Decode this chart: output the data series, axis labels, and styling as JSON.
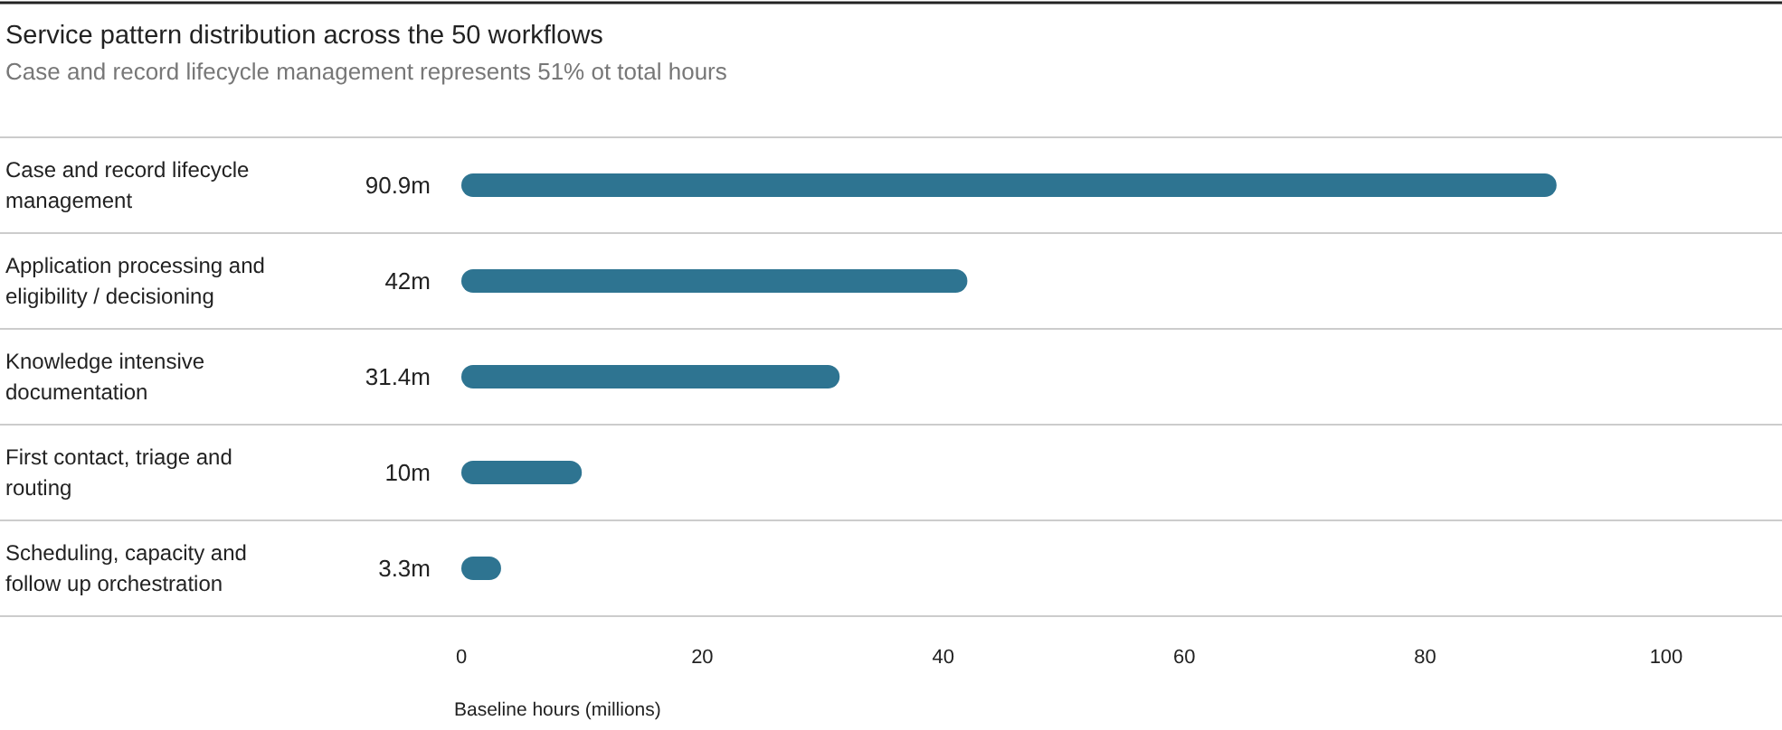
{
  "chart_data": {
    "type": "bar",
    "orientation": "horizontal",
    "title": "Service pattern distribution across the 50 workflows",
    "subtitle": "Case and record lifecycle management represents 51% ot total hours",
    "xlabel": "Baseline hours (millions)",
    "categories": [
      "Case and record lifecycle management",
      "Application processing and eligibility / decisioning",
      "Knowledge intensive documentation",
      "First contact, triage and routing",
      "Scheduling, capacity and follow up orchestration"
    ],
    "values": [
      90.9,
      42,
      31.4,
      10,
      3.3
    ],
    "value_labels": [
      "90.9m",
      "42m",
      "31.4m",
      "10m",
      "3.3m"
    ],
    "color": "#2e7491",
    "xlim": [
      0,
      100
    ],
    "xticks": [
      0,
      20,
      40,
      60,
      80,
      100
    ],
    "grid": false
  }
}
